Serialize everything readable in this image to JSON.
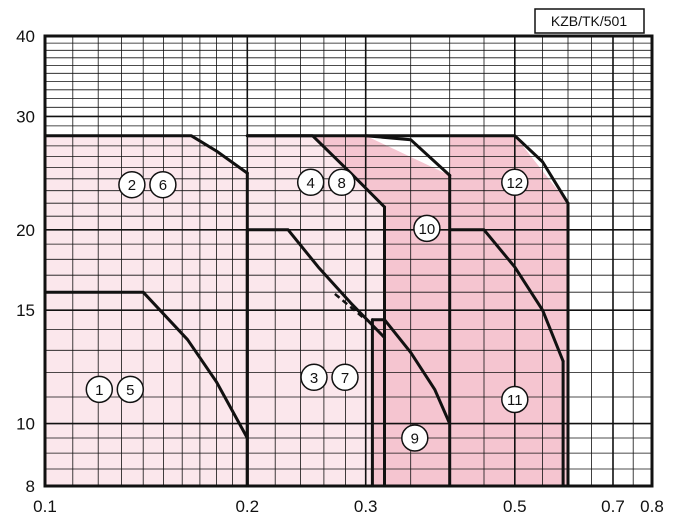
{
  "chart_data": {
    "type": "area",
    "title": "",
    "xlabel": "",
    "ylabel": "",
    "code": "KZB/TK/501",
    "x_scale": "log",
    "y_scale": "log",
    "xlim": [
      0.1,
      0.8
    ],
    "ylim": [
      8,
      40
    ],
    "x_ticks": [
      {
        "value": 0.1,
        "label": "0.1"
      },
      {
        "value": 0.2,
        "label": "0.2"
      },
      {
        "value": 0.3,
        "label": "0.3"
      },
      {
        "value": 0.5,
        "label": "0.5"
      },
      {
        "value": 0.7,
        "label": "0.7"
      },
      {
        "value": 0.8,
        "label": "0.8"
      }
    ],
    "y_ticks": [
      {
        "value": 8,
        "label": "8"
      },
      {
        "value": 10,
        "label": "10"
      },
      {
        "value": 15,
        "label": "15"
      },
      {
        "value": 20,
        "label": "20"
      },
      {
        "value": 30,
        "label": "30"
      },
      {
        "value": 40,
        "label": "40"
      }
    ],
    "grid": true,
    "colors": {
      "fill_light": "#fbe7ec",
      "fill_medium": "#f5c5d0",
      "fill_dark": "#eeaab8",
      "curve": "#111111",
      "grid": "#111111"
    },
    "regions": [
      {
        "name": "upper-a",
        "fill": "fill_light",
        "points": [
          [
            0.1,
            28
          ],
          [
            0.165,
            28
          ],
          [
            0.2,
            24.5
          ],
          [
            0.2,
            8
          ],
          [
            0.1,
            8
          ]
        ]
      },
      {
        "name": "upper-b",
        "fill": "fill_light",
        "points": [
          [
            0.2,
            28
          ],
          [
            0.25,
            28
          ],
          [
            0.32,
            21.7
          ],
          [
            0.32,
            8
          ],
          [
            0.2,
            8
          ]
        ]
      },
      {
        "name": "upper-c",
        "fill": "fill_medium",
        "points": [
          [
            0.25,
            28
          ],
          [
            0.3,
            28
          ],
          [
            0.4,
            24.3
          ],
          [
            0.4,
            8
          ],
          [
            0.307,
            8
          ],
          [
            0.307,
            14.5
          ],
          [
            0.32,
            14.5
          ],
          [
            0.32,
            21.7
          ]
        ]
      },
      {
        "name": "upper-d",
        "fill": "fill_medium",
        "points": [
          [
            0.4,
            28
          ],
          [
            0.5,
            28
          ],
          [
            0.6,
            22
          ],
          [
            0.6,
            8
          ],
          [
            0.4,
            8
          ]
        ]
      }
    ],
    "curves": [
      {
        "name": "curve-1-5",
        "points": [
          [
            0.1,
            16
          ],
          [
            0.14,
            16
          ],
          [
            0.163,
            13.5
          ],
          [
            0.18,
            11.6
          ],
          [
            0.2,
            9.5
          ]
        ]
      },
      {
        "name": "curve-2-6",
        "points": [
          [
            0.1,
            28
          ],
          [
            0.165,
            28
          ],
          [
            0.18,
            26.5
          ],
          [
            0.2,
            24.5
          ]
        ]
      },
      {
        "name": "curve-2-6-end",
        "points": [
          [
            0.2,
            24.5
          ],
          [
            0.2,
            8
          ]
        ]
      },
      {
        "name": "curve-3-7",
        "points": [
          [
            0.2,
            20
          ],
          [
            0.23,
            20
          ],
          [
            0.255,
            17.5
          ],
          [
            0.285,
            15.4
          ],
          [
            0.32,
            13.6
          ]
        ]
      },
      {
        "name": "curve-3-7-end",
        "points": [
          [
            0.2,
            20
          ],
          [
            0.2,
            8
          ]
        ]
      },
      {
        "name": "curve-4-8",
        "points": [
          [
            0.2,
            28
          ],
          [
            0.25,
            28
          ],
          [
            0.285,
            24.5
          ],
          [
            0.32,
            21.7
          ]
        ]
      },
      {
        "name": "curve-4-8-end",
        "points": [
          [
            0.32,
            21.7
          ],
          [
            0.32,
            8
          ]
        ]
      },
      {
        "name": "curve-9",
        "points": [
          [
            0.307,
            14.5
          ],
          [
            0.32,
            14.5
          ],
          [
            0.35,
            12.9
          ],
          [
            0.38,
            11.3
          ],
          [
            0.4,
            10
          ]
        ]
      },
      {
        "name": "curve-9-end",
        "points": [
          [
            0.307,
            14.5
          ],
          [
            0.307,
            8
          ]
        ]
      },
      {
        "name": "curve-10",
        "points": [
          [
            0.3,
            28
          ],
          [
            0.35,
            27.6
          ],
          [
            0.4,
            24.3
          ]
        ]
      },
      {
        "name": "curve-10-end",
        "points": [
          [
            0.4,
            24.3
          ],
          [
            0.4,
            8
          ]
        ]
      },
      {
        "name": "curve-11",
        "points": [
          [
            0.4,
            20
          ],
          [
            0.45,
            20
          ],
          [
            0.5,
            17.5
          ],
          [
            0.55,
            15
          ],
          [
            0.59,
            12.5
          ]
        ]
      },
      {
        "name": "curve-11-end",
        "points": [
          [
            0.59,
            12.5
          ],
          [
            0.59,
            8
          ]
        ]
      },
      {
        "name": "curve-12",
        "points": [
          [
            0.2,
            28
          ],
          [
            0.5,
            28
          ],
          [
            0.55,
            25.5
          ],
          [
            0.6,
            22
          ]
        ]
      },
      {
        "name": "curve-12-end",
        "points": [
          [
            0.6,
            22
          ],
          [
            0.6,
            8
          ]
        ]
      }
    ],
    "dashed_curves": [
      {
        "name": "dashed-3-7",
        "points": [
          [
            0.27,
            15.9
          ],
          [
            0.3,
            14.5
          ]
        ]
      }
    ],
    "labels": [
      {
        "numbers": [
          "1",
          "5"
        ],
        "x": 0.127,
        "y": 11.3
      },
      {
        "numbers": [
          "2",
          "6"
        ],
        "x": 0.142,
        "y": 23.5
      },
      {
        "numbers": [
          "3",
          "7"
        ],
        "x": 0.265,
        "y": 11.8
      },
      {
        "numbers": [
          "4",
          "8"
        ],
        "x": 0.262,
        "y": 23.7
      },
      {
        "numbers": [
          "9"
        ],
        "x": 0.355,
        "y": 9.5
      },
      {
        "numbers": [
          "10"
        ],
        "x": 0.37,
        "y": 20.1
      },
      {
        "numbers": [
          "11"
        ],
        "x": 0.5,
        "y": 10.9
      },
      {
        "numbers": [
          "12"
        ],
        "x": 0.5,
        "y": 23.7
      }
    ]
  }
}
